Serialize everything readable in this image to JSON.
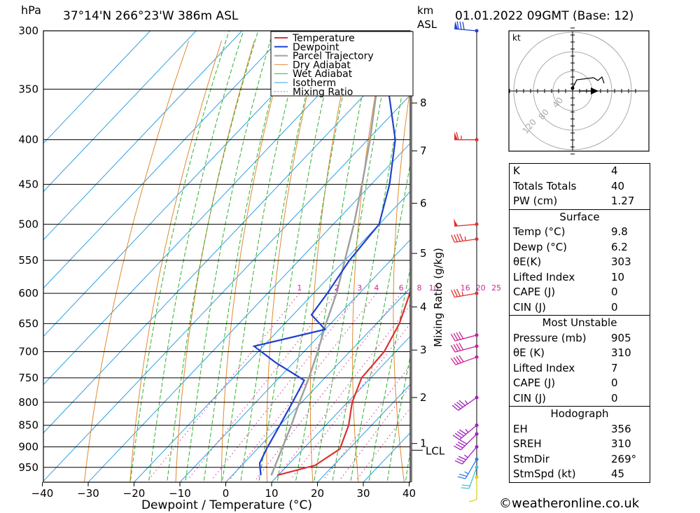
{
  "header": {
    "pressure_unit": "hPa",
    "location": "37°14'N 266°23'W 386m ASL",
    "height_unit_line1": "km",
    "height_unit_line2": "ASL",
    "datetime": "01.01.2022 09GMT (Base: 12)"
  },
  "chart_data": {
    "type": "skew-t",
    "xlabel": "Dewpoint / Temperature (°C)",
    "right_label": "Mixing Ratio (g/kg)",
    "x_ticks": [
      "−40",
      "−30",
      "−20",
      "−10",
      "0",
      "10",
      "20",
      "30",
      "40"
    ],
    "pressure_levels": [
      "300",
      "350",
      "400",
      "450",
      "500",
      "550",
      "600",
      "650",
      "700",
      "750",
      "800",
      "850",
      "900",
      "950"
    ],
    "km_ticks": [
      {
        "km": "8",
        "p": 363
      },
      {
        "km": "7",
        "p": 412
      },
      {
        "km": "6",
        "p": 473
      },
      {
        "km": "5",
        "p": 540
      },
      {
        "km": "4",
        "p": 622
      },
      {
        "km": "3",
        "p": 697
      },
      {
        "km": "2",
        "p": 790
      },
      {
        "km": "1",
        "p": 892
      }
    ],
    "lcl_label": "LCL",
    "lcl_pressure": 908,
    "mixing_ratio_labels": [
      "1",
      "2",
      "3",
      "4",
      "6",
      "8",
      "10",
      "16",
      "20",
      "25"
    ],
    "legend": [
      "Temperature",
      "Dewpoint",
      "Parcel Trajectory",
      "Dry Adiabat",
      "Wet Adiabat",
      "Isotherm",
      "Mixing Ratio"
    ],
    "colors": {
      "temperature": "#e03030",
      "dewpoint": "#2040d0",
      "parcel": "#a0a0a0",
      "dry_adiabat": "#e08a30",
      "wet_adiabat": "#30b030",
      "isotherm": "#30a0e0",
      "mixing_ratio": "#cc2a9a"
    },
    "temperature": [
      [
        970,
        9.8
      ],
      [
        945,
        16.0
      ],
      [
        905,
        18.0
      ],
      [
        850,
        15.0
      ],
      [
        800,
        11.0
      ],
      [
        750,
        8.0
      ],
      [
        700,
        7.5
      ],
      [
        650,
        5.0
      ],
      [
        600,
        1.0
      ],
      [
        550,
        -4.0
      ],
      [
        500,
        -9.5
      ],
      [
        450,
        -16.0
      ],
      [
        400,
        -23.0
      ],
      [
        350,
        -31.0
      ],
      [
        300,
        -38.0
      ]
    ],
    "dewpoint": [
      [
        970,
        6.2
      ],
      [
        940,
        3.5
      ],
      [
        905,
        2.0
      ],
      [
        850,
        0.0
      ],
      [
        800,
        -2.0
      ],
      [
        755,
        -4.0
      ],
      [
        720,
        -14.0
      ],
      [
        690,
        -22.0
      ],
      [
        660,
        -10.0
      ],
      [
        635,
        -16.0
      ],
      [
        600,
        -17.0
      ],
      [
        550,
        -19.0
      ],
      [
        500,
        -20.0
      ],
      [
        450,
        -26.0
      ],
      [
        400,
        -34.0
      ],
      [
        350,
        -46.0
      ],
      [
        330,
        -52.0
      ],
      [
        300,
        -52.0
      ]
    ],
    "parcel": [
      [
        970,
        8.5
      ],
      [
        908,
        5.5
      ],
      [
        850,
        2.5
      ],
      [
        800,
        -0.5
      ],
      [
        750,
        -3.5
      ],
      [
        700,
        -7.0
      ],
      [
        650,
        -11.0
      ],
      [
        600,
        -15.0
      ],
      [
        550,
        -20.0
      ],
      [
        500,
        -25.5
      ],
      [
        450,
        -32.0
      ],
      [
        400,
        -39.5
      ],
      [
        350,
        -48.5
      ],
      [
        320,
        -54.0
      ]
    ],
    "wind_barbs": [
      {
        "p": 300,
        "dir": 275,
        "kt": 80,
        "color": "#2040d0"
      },
      {
        "p": 400,
        "dir": 270,
        "kt": 65,
        "color": "#e03030"
      },
      {
        "p": 500,
        "dir": 265,
        "kt": 50,
        "color": "#e03030"
      },
      {
        "p": 520,
        "dir": 262,
        "kt": 45,
        "color": "#e03030"
      },
      {
        "p": 600,
        "dir": 260,
        "kt": 35,
        "color": "#e03030"
      },
      {
        "p": 670,
        "dir": 255,
        "kt": 40,
        "color": "#d02090"
      },
      {
        "p": 690,
        "dir": 255,
        "kt": 40,
        "color": "#d02090"
      },
      {
        "p": 710,
        "dir": 250,
        "kt": 40,
        "color": "#d02090"
      },
      {
        "p": 790,
        "dir": 235,
        "kt": 45,
        "color": "#a020c0"
      },
      {
        "p": 850,
        "dir": 230,
        "kt": 45,
        "color": "#a020c0"
      },
      {
        "p": 870,
        "dir": 225,
        "kt": 40,
        "color": "#a020c0"
      },
      {
        "p": 900,
        "dir": 220,
        "kt": 35,
        "color": "#a020c0"
      },
      {
        "p": 930,
        "dir": 210,
        "kt": 25,
        "color": "#3080e0"
      },
      {
        "p": 950,
        "dir": 200,
        "kt": 20,
        "color": "#40c0e0"
      },
      {
        "p": 975,
        "dir": 180,
        "kt": 10,
        "color": "#e0d020"
      }
    ]
  },
  "hodograph": {
    "unit": "kt",
    "rings": [
      "40",
      "80",
      "120"
    ]
  },
  "indices": {
    "k_label": "K",
    "k": "4",
    "tt_label": "Totals Totals",
    "tt": "40",
    "pw_label": "PW (cm)",
    "pw": "1.27"
  },
  "surface": {
    "title": "Surface",
    "temp_label": "Temp (°C)",
    "temp": "9.8",
    "dewp_label": "Dewp (°C)",
    "dewp": "6.2",
    "theta_label": "θE(K)",
    "theta": "303",
    "li_label": "Lifted Index",
    "li": "10",
    "cape_label": "CAPE (J)",
    "cape": "0",
    "cin_label": "CIN (J)",
    "cin": "0"
  },
  "most_unstable": {
    "title": "Most Unstable",
    "pressure_label": "Pressure (mb)",
    "pressure": "905",
    "theta_label": "θE (K)",
    "theta": "310",
    "li_label": "Lifted Index",
    "li": "7",
    "cape_label": "CAPE (J)",
    "cape": "0",
    "cin_label": "CIN (J)",
    "cin": "0"
  },
  "hodo_stats": {
    "title": "Hodograph",
    "eh_label": "EH",
    "eh": "356",
    "sreh_label": "SREH",
    "sreh": "310",
    "stmdir_label": "StmDir",
    "stmdir": "269°",
    "stmspd_label": "StmSpd (kt)",
    "stmspd": "45"
  },
  "footer": {
    "credit": "©weatheronline.co.uk"
  }
}
